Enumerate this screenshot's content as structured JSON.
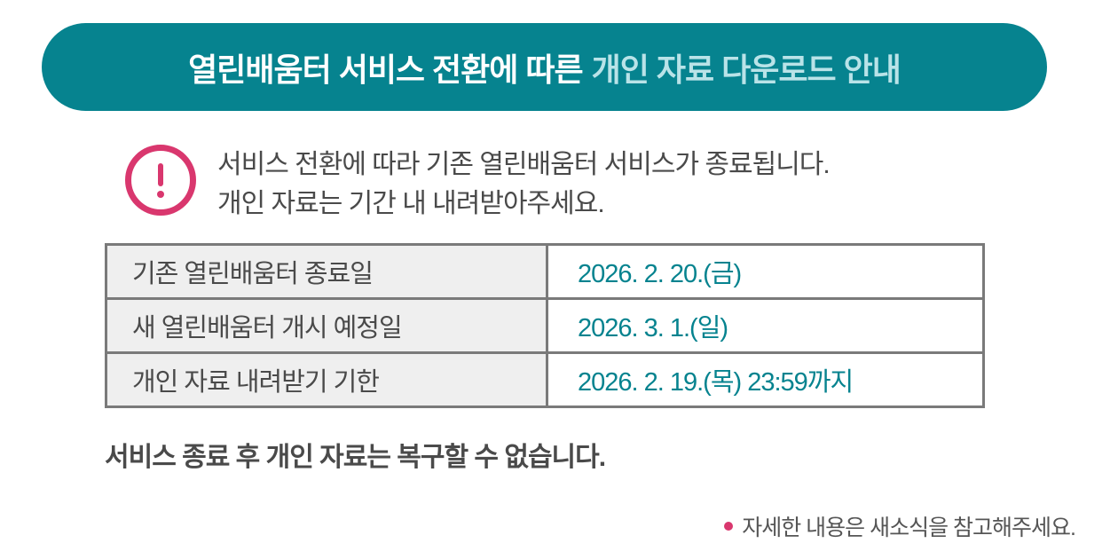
{
  "colors": {
    "accent": "#06838f",
    "highlight": "#b9e3e8",
    "alert": "#d9376e"
  },
  "banner": {
    "title_main": "열린배움터 서비스 전환에 따른",
    "title_highlight": "개인 자료 다운로드 안내"
  },
  "alert": {
    "icon": "exclamation-circle-icon",
    "line1": "서비스 전환에 따라 기존 열린배움터 서비스가 종료됩니다.",
    "line2": "개인 자료는 기간 내 내려받아주세요."
  },
  "schedule": [
    {
      "label": "기존 열린배움터 종료일",
      "value": "2026. 2. 20.(금)"
    },
    {
      "label": "새 열린배움터 개시 예정일",
      "value": "2026. 3. 1.(일)"
    },
    {
      "label": "개인 자료 내려받기 기한",
      "value": "2026. 2. 19.(목) 23:59까지"
    }
  ],
  "warning": "서비스 종료 후 개인 자료는 복구할 수 없습니다.",
  "note": "자세한 내용은 새소식을 참고해주세요."
}
